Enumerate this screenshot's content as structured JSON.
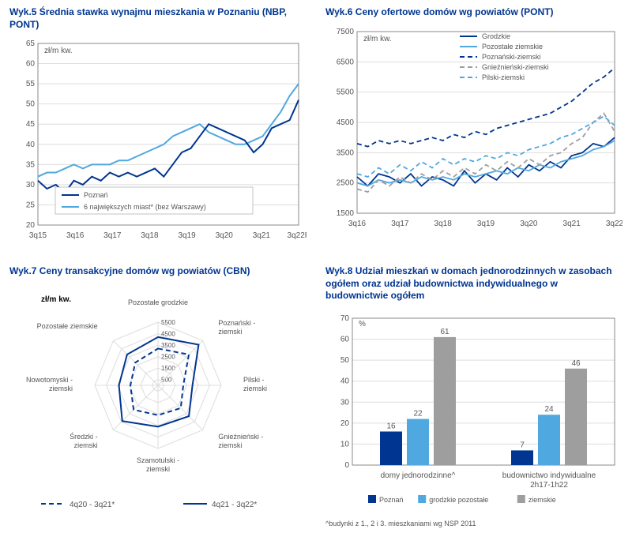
{
  "colors": {
    "title": "#003591",
    "axis": "#888888",
    "grid": "#dddddd",
    "dark_blue": "#003591",
    "light_blue": "#4fa8e0",
    "grey": "#9e9e9e",
    "bg": "#ffffff",
    "text": "#555555"
  },
  "chart5": {
    "title": "Wyk.5 Średnia stawka wynajmu mieszkania w Poznaniu (NBP, PONT)",
    "ylabel": "zł/m kw.",
    "ylim": [
      20,
      65
    ],
    "ytick_step": 5,
    "xticks": [
      "3q15",
      "3q16",
      "3q17",
      "3q18",
      "3q19",
      "3q20",
      "3q21",
      "3q22P"
    ],
    "legend": [
      {
        "label": "Poznań",
        "color": "#003591",
        "dash": "none"
      },
      {
        "label": "6 największych miast* (bez Warszawy)",
        "color": "#4fa8e0",
        "dash": "none"
      }
    ],
    "series": {
      "poznan": [
        31,
        29,
        30,
        28,
        31,
        30,
        32,
        31,
        33,
        32,
        33,
        32,
        33,
        34,
        32,
        35,
        38,
        39,
        42,
        45,
        44,
        43,
        42,
        41,
        38,
        40,
        44,
        45,
        46,
        51
      ],
      "miasta6": [
        32,
        33,
        33,
        34,
        35,
        34,
        35,
        35,
        35,
        36,
        36,
        37,
        38,
        39,
        40,
        42,
        43,
        44,
        45,
        43,
        42,
        41,
        40,
        40,
        41,
        42,
        45,
        48,
        52,
        55
      ]
    },
    "label_fontsize": 10
  },
  "chart6": {
    "title": "Wyk.6 Ceny ofertowe domów wg powiatów (PONT)",
    "ylabel": "zł/m kw.",
    "ylim": [
      1500,
      7500
    ],
    "ytick_step": 1000,
    "xticks": [
      "3q16",
      "3q17",
      "3q18",
      "3q19",
      "3q20",
      "3q21",
      "3q22"
    ],
    "legend": [
      {
        "label": "Grodzkie",
        "color": "#003591",
        "dash": "none"
      },
      {
        "label": "Pozostałe ziemskie",
        "color": "#4fa8e0",
        "dash": "none"
      },
      {
        "label": "Poznański-ziemski",
        "color": "#003591",
        "dash": "6,4"
      },
      {
        "label": "Gnieźnieński-ziemski",
        "color": "#9e9e9e",
        "dash": "6,4"
      },
      {
        "label": "Pilski-ziemski",
        "color": "#4fa8e0",
        "dash": "6,4"
      }
    ],
    "series": {
      "grodzkie": [
        2700,
        2400,
        2800,
        2700,
        2500,
        2800,
        2400,
        2700,
        2600,
        2400,
        2900,
        2500,
        2800,
        2600,
        3000,
        2700,
        3100,
        2900,
        3200,
        3000,
        3400,
        3500,
        3800,
        3700,
        4000
      ],
      "pozostale": [
        2500,
        2400,
        2600,
        2500,
        2600,
        2500,
        2700,
        2600,
        2700,
        2600,
        2800,
        2700,
        2800,
        2900,
        2800,
        3000,
        2900,
        3100,
        3000,
        3200,
        3300,
        3400,
        3600,
        3700,
        3900
      ],
      "poznanski": [
        3800,
        3700,
        3900,
        3800,
        3900,
        3800,
        3900,
        4000,
        3900,
        4100,
        4000,
        4200,
        4100,
        4300,
        4400,
        4500,
        4600,
        4700,
        4800,
        5000,
        5200,
        5500,
        5800,
        6000,
        6300
      ],
      "gniezn": [
        2300,
        2200,
        2600,
        2400,
        2700,
        2500,
        2800,
        2600,
        2900,
        2700,
        3000,
        2800,
        3100,
        2900,
        3200,
        3000,
        3300,
        3100,
        3400,
        3500,
        3800,
        4000,
        4500,
        4800,
        4200
      ],
      "pilski": [
        2800,
        2700,
        3000,
        2800,
        3100,
        2900,
        3200,
        3000,
        3300,
        3100,
        3300,
        3200,
        3400,
        3300,
        3500,
        3400,
        3600,
        3700,
        3800,
        4000,
        4100,
        4300,
        4500,
        4700,
        4400
      ]
    },
    "label_fontsize": 10
  },
  "chart7": {
    "title": "Wyk.7 Ceny transakcyjne domów wg powiatów (CBN)",
    "ylabel": "zł/m kw.",
    "axes": [
      "Pozostałe grodzkie",
      "Poznański - ziemski",
      "Pilski - ziemski",
      "Gnieźnieński - ziemski",
      "Szamotulski - ziemski",
      "Średzki - ziemski",
      "Nowotomyski - ziemski",
      "Pozostałe ziemskie"
    ],
    "rings": [
      500,
      1500,
      2500,
      3500,
      4500,
      5500
    ],
    "legend": [
      {
        "label": "4q20 - 3q21*",
        "color": "#003591",
        "dash": "6,4"
      },
      {
        "label": "4q21 - 3q22*",
        "color": "#003591",
        "dash": "none"
      }
    ],
    "series": {
      "s1": [
        3200,
        3800,
        2200,
        2800,
        2600,
        3000,
        2400,
        2800
      ],
      "s2": [
        4200,
        5000,
        3000,
        3800,
        3600,
        4400,
        3400,
        3800
      ]
    },
    "label_fontsize": 9
  },
  "chart8": {
    "title": "Wyk.8 Udział mieszkań w domach jednorodzinnych w zasobach ogółem oraz udział budownictwa indywidualnego w budownictwie ogółem",
    "ylabel": "%",
    "ylim": [
      0,
      70
    ],
    "ytick_step": 10,
    "categories": [
      "domy jednorodzinne^",
      "budownictwo indywidualne 2h17-1h22"
    ],
    "legend": [
      {
        "label": "Poznań",
        "color": "#003591"
      },
      {
        "label": "grodzkie pozostałe",
        "color": "#4fa8e0"
      },
      {
        "label": "ziemskie",
        "color": "#9e9e9e"
      }
    ],
    "data": [
      {
        "poznan": 16,
        "grodzkie": 22,
        "ziemskie": 61
      },
      {
        "poznan": 7,
        "grodzkie": 24,
        "ziemskie": 46
      }
    ],
    "footnote": "^budynki z 1., 2 i 3. mieszkaniami wg NSP 2011",
    "label_fontsize": 10
  }
}
